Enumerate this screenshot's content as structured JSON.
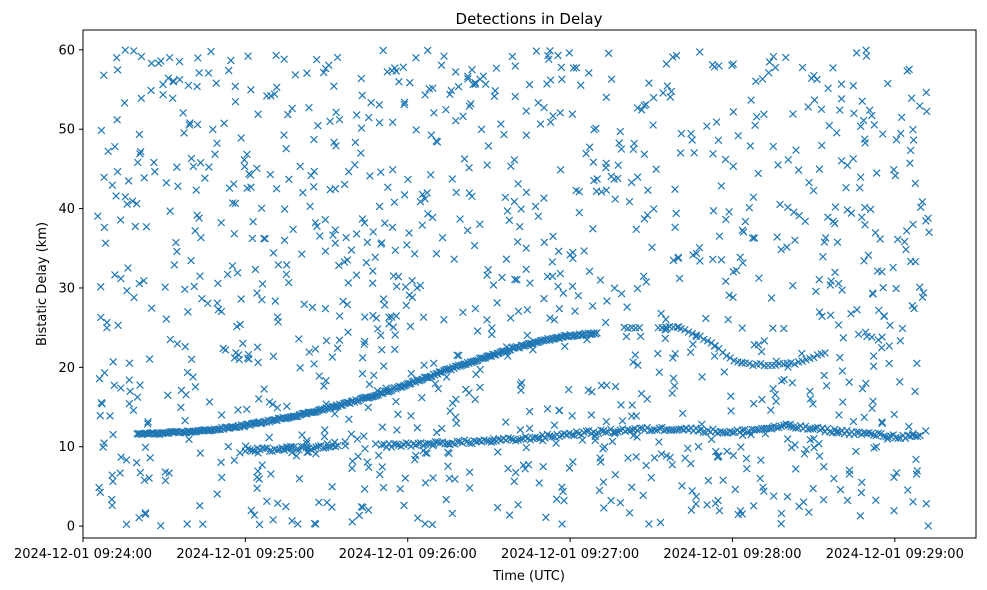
{
  "chart_data": {
    "type": "scatter",
    "title": "Detections in Delay",
    "xlabel": "Time (UTC)",
    "ylabel": "Bistatic Delay (km)",
    "marker": "x",
    "color": "#1f77b4",
    "grid": false,
    "legend": false,
    "xlim": [
      "2024-12-01 09:24:00",
      "2024-12-01 09:29:30"
    ],
    "ylim": [
      -1.5,
      62.5
    ],
    "x_ticks": [
      "2024-12-01 09:24:00",
      "2024-12-01 09:25:00",
      "2024-12-01 09:26:00",
      "2024-12-01 09:27:00",
      "2024-12-01 09:28:00",
      "2024-12-01 09:29:00"
    ],
    "y_ticks": [
      0,
      10,
      20,
      30,
      40,
      50,
      60
    ],
    "series": [
      {
        "description_points": [
          [
            "2024-12-01 09:24:20",
            11.6
          ],
          [
            "2024-12-01 09:24:30",
            11.7
          ],
          [
            "2024-12-01 09:24:40",
            11.9
          ],
          [
            "2024-12-01 09:24:50",
            12.2
          ],
          [
            "2024-12-01 09:25:00",
            12.7
          ],
          [
            "2024-12-01 09:25:10",
            13.3
          ],
          [
            "2024-12-01 09:25:20",
            14.0
          ],
          [
            "2024-12-01 09:25:30",
            14.8
          ],
          [
            "2024-12-01 09:25:40",
            15.7
          ],
          [
            "2024-12-01 09:25:50",
            16.7
          ],
          [
            "2024-12-01 09:26:00",
            17.9
          ],
          [
            "2024-12-01 09:26:10",
            19.1
          ],
          [
            "2024-12-01 09:26:20",
            20.3
          ],
          [
            "2024-12-01 09:26:30",
            21.4
          ],
          [
            "2024-12-01 09:26:40",
            22.5
          ],
          [
            "2024-12-01 09:26:50",
            23.4
          ],
          [
            "2024-12-01 09:27:00",
            24.0
          ],
          [
            "2024-12-01 09:27:10",
            24.3
          ],
          [
            "2024-12-01 09:27:20",
            24.9
          ],
          [
            "2024-12-01 09:27:40",
            25.1
          ],
          [
            "2024-12-01 09:27:50",
            23.5
          ],
          [
            "2024-12-01 09:28:00",
            21.0
          ],
          [
            "2024-12-01 09:28:05",
            20.4
          ],
          [
            "2024-12-01 09:28:15",
            20.3
          ],
          [
            "2024-12-01 09:28:25",
            20.6
          ],
          [
            "2024-12-01 09:28:35",
            22.0
          ],
          [
            "2024-12-01 09:25:00",
            9.5
          ],
          [
            "2024-12-01 09:25:20",
            9.8
          ],
          [
            "2024-12-01 09:25:40",
            10.0
          ],
          [
            "2024-12-01 09:26:10",
            10.4
          ],
          [
            "2024-12-01 09:26:40",
            10.9
          ],
          [
            "2024-12-01 09:27:00",
            11.6
          ],
          [
            "2024-12-01 09:27:20",
            12.1
          ],
          [
            "2024-12-01 09:27:40",
            12.3
          ],
          [
            "2024-12-01 09:28:00",
            11.8
          ],
          [
            "2024-12-01 09:28:20",
            12.6
          ],
          [
            "2024-12-01 09:28:40",
            11.9
          ],
          [
            "2024-12-01 09:29:00",
            11.3
          ],
          [
            "2024-12-01 09:29:10",
            11.2
          ],
          [
            "2024-12-01 09:29:10",
            57.5
          ],
          [
            "2024-12-01 09:24:05",
            47.4
          ],
          [
            "2024-12-01 09:24:15",
            57.7
          ],
          [
            "2024-12-01 09:25:35",
            59.8
          ],
          [
            "2024-12-01 09:27:20",
            59.6
          ]
        ]
      }
    ]
  }
}
